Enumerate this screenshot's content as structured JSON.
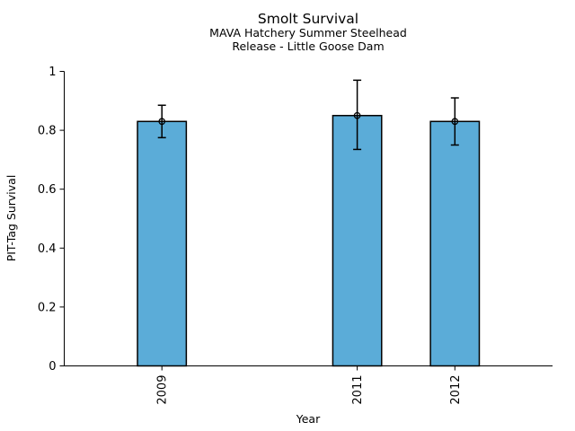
{
  "chart_data": {
    "type": "bar",
    "title": "Smolt Survival",
    "subtitle1": "MAVA Hatchery Summer Steelhead",
    "subtitle2": "Release - Little Goose Dam",
    "xlabel": "Year",
    "ylabel": "PIT-Tag Survival",
    "categories": [
      "2009",
      "2011",
      "2012"
    ],
    "x_positions": [
      2009,
      2011,
      2012
    ],
    "values": [
      0.83,
      0.85,
      0.83
    ],
    "error_low": [
      0.775,
      0.735,
      0.75
    ],
    "error_high": [
      0.885,
      0.97,
      0.91
    ],
    "xlim": [
      2008,
      2013
    ],
    "ylim": [
      0,
      1
    ],
    "yticks": [
      0,
      0.2,
      0.4,
      0.6,
      0.8,
      1
    ],
    "ytick_labels": [
      "0",
      "0.2",
      "0.4",
      "0.6",
      "0.8",
      "1"
    ],
    "bar_width_x": 0.5,
    "bar_color": "#5BACD8",
    "bar_edge_color": "#000000",
    "axis_color": "#000000",
    "marker": "open-circle",
    "error_caps": true,
    "grid": false,
    "legend": null
  }
}
